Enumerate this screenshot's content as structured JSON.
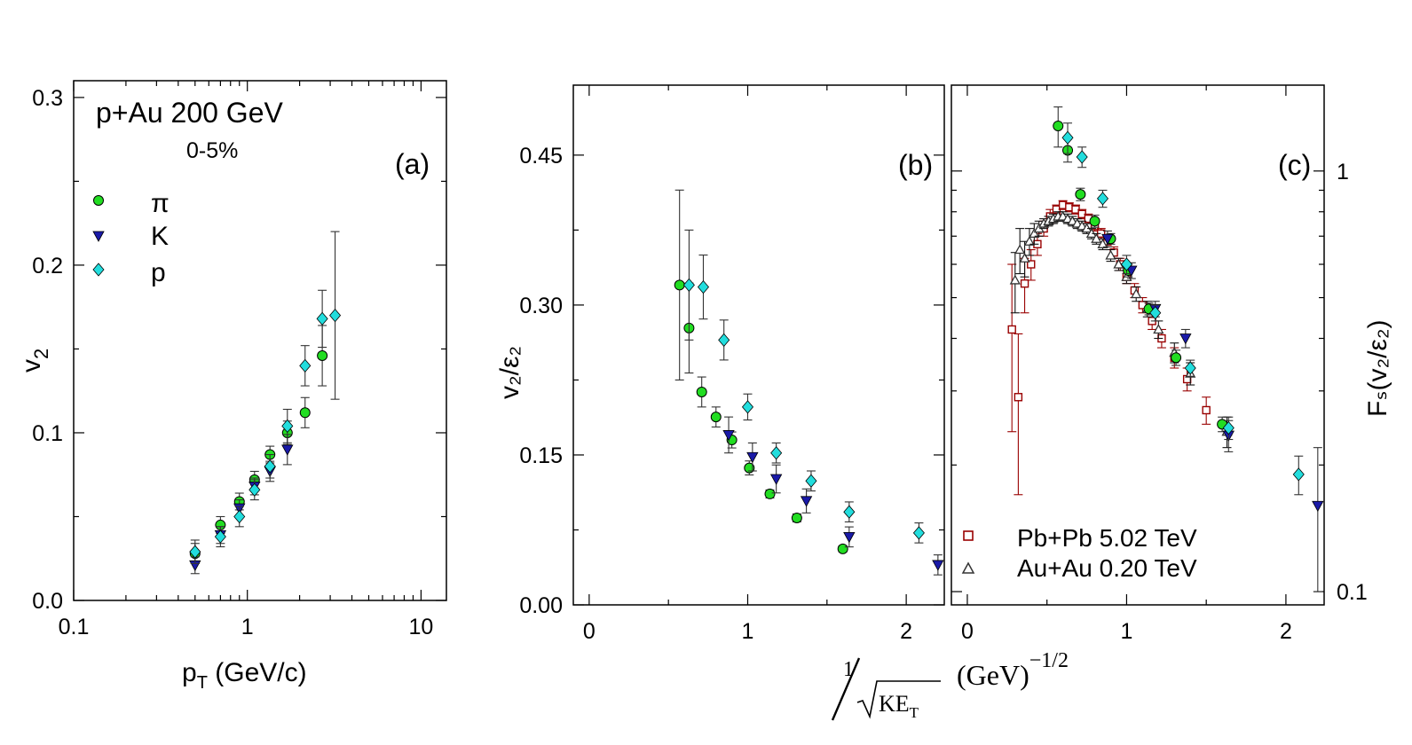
{
  "colors": {
    "pi": "#22dd22",
    "K": "#1a1aa8",
    "p": "#22dddd",
    "PbPb": "#990000",
    "AuAu": "#333333"
  },
  "labels": {
    "a_system": "p+Au  200 GeV",
    "a_centrality": "0-5%",
    "a_panel": "(a)",
    "b_panel": "(b)",
    "c_panel": "(c)",
    "legend_pi": "π",
    "legend_K": "K",
    "legend_p": "p",
    "a_xlabel_main": "p",
    "a_xlabel_sub": "T",
    "a_xlabel_rest": " (GeV/c)",
    "a_ylabel_main": "v",
    "a_ylabel_sub": "2",
    "b_ylabel": "v₂/ε₂",
    "c_ylabel": "Fₛ(v₂/ε₂)",
    "x_shared_num": "1",
    "x_shared_den": "KE",
    "x_shared_den_sub": "T",
    "x_shared_unit": "(GeV)",
    "x_shared_exp": "−1/2",
    "legend_pbpb": "Pb+Pb  5.02 TeV",
    "legend_auau": "Au+Au  0.20 TeV"
  },
  "chart_data": [
    {
      "id": "a",
      "type": "scatter",
      "xscale": "log",
      "xlim": [
        0.1,
        14
      ],
      "ylim": [
        0,
        0.31
      ],
      "xticks": [
        "0.1",
        "1",
        "10"
      ],
      "yticks": [
        "0.0",
        "0.1",
        "0.2",
        "0.3"
      ],
      "xlabel": "pT (GeV/c)",
      "ylabel": "v2",
      "series": [
        {
          "name": "π",
          "marker": "circle",
          "color": "#22dd22",
          "x": [
            0.5,
            0.7,
            0.9,
            1.1,
            1.35,
            1.7,
            2.15,
            2.7
          ],
          "y": [
            0.028,
            0.045,
            0.059,
            0.072,
            0.087,
            0.1,
            0.112,
            0.146
          ],
          "err": [
            0.006,
            0.005,
            0.005,
            0.005,
            0.005,
            0.007,
            0.009,
            0.018
          ]
        },
        {
          "name": "K",
          "marker": "triangle-down",
          "color": "#1a1aa8",
          "x": [
            0.5,
            0.7,
            0.9,
            1.1,
            1.35,
            1.7
          ],
          "y": [
            0.021,
            0.039,
            0.055,
            0.068,
            0.077,
            0.09
          ],
          "err": [
            0.005,
            0.005,
            0.005,
            0.005,
            0.006,
            0.009
          ]
        },
        {
          "name": "p",
          "marker": "diamond",
          "color": "#22dddd",
          "x": [
            0.5,
            0.7,
            0.9,
            1.1,
            1.35,
            1.7,
            2.15,
            2.7,
            3.2
          ],
          "y": [
            0.029,
            0.038,
            0.05,
            0.066,
            0.08,
            0.104,
            0.14,
            0.168,
            0.17
          ],
          "err": [
            0.007,
            0.006,
            0.006,
            0.006,
            0.007,
            0.01,
            0.012,
            0.017,
            0.05
          ]
        }
      ]
    },
    {
      "id": "b",
      "type": "scatter",
      "xlim": [
        -0.1,
        2.24
      ],
      "ylim": [
        0,
        0.52
      ],
      "xticks": [
        "0",
        "1",
        "2"
      ],
      "yticks": [
        "0.00",
        "0.15",
        "0.30",
        "0.45"
      ],
      "xlabel": "1/√KET (GeV)^-1/2",
      "ylabel": "v2/ε2",
      "series": [
        {
          "name": "π",
          "marker": "circle",
          "color": "#22dd22",
          "x": [
            0.57,
            0.63,
            0.71,
            0.8,
            0.9,
            1.01,
            1.14,
            1.31,
            1.6
          ],
          "y": [
            0.32,
            0.277,
            0.213,
            0.188,
            0.165,
            0.137,
            0.111,
            0.087,
            0.056
          ],
          "err": [
            0.095,
            0.045,
            0.015,
            0.01,
            0.008,
            0.007,
            0.004,
            0.004,
            0.003
          ]
        },
        {
          "name": "K",
          "marker": "triangle-down",
          "color": "#1a1aa8",
          "x": [
            0.88,
            1.03,
            1.18,
            1.37,
            1.64,
            2.2
          ],
          "y": [
            0.17,
            0.148,
            0.126,
            0.104,
            0.068,
            0.04
          ],
          "err": [
            0.018,
            0.014,
            0.014,
            0.012,
            0.01,
            0.01
          ]
        },
        {
          "name": "p",
          "marker": "diamond",
          "color": "#22dddd",
          "x": [
            0.63,
            0.72,
            0.85,
            1.0,
            1.18,
            1.4,
            1.64,
            2.08
          ],
          "y": [
            0.32,
            0.318,
            0.265,
            0.198,
            0.152,
            0.124,
            0.093,
            0.072
          ],
          "err": [
            0.055,
            0.032,
            0.02,
            0.013,
            0.01,
            0.01,
            0.01,
            0.01
          ]
        }
      ]
    },
    {
      "id": "c",
      "type": "scatter",
      "yscale": "log",
      "xlim": [
        -0.1,
        2.24
      ],
      "ylim": [
        0.093,
        1.6
      ],
      "xticks": [
        "0",
        "1",
        "2"
      ],
      "yticks": [
        "0.1",
        "1"
      ],
      "xlabel": "1/√KET (GeV)^-1/2",
      "ylabel": "FS(v2/ε2)",
      "series": [
        {
          "name": "π",
          "marker": "circle",
          "color": "#22dd22",
          "x": [
            0.57,
            0.63,
            0.71,
            0.8,
            0.9,
            1.01,
            1.14,
            1.31,
            1.6
          ],
          "y": [
            1.28,
            1.12,
            0.88,
            0.76,
            0.69,
            0.58,
            0.47,
            0.36,
            0.25
          ],
          "err": [
            0.14,
            0.07,
            0.03,
            0.025,
            0.02,
            0.02,
            0.015,
            0.015,
            0.01
          ]
        },
        {
          "name": "K",
          "marker": "triangle-down",
          "color": "#1a1aa8",
          "x": [
            0.88,
            1.03,
            1.18,
            1.37,
            1.64,
            2.2
          ],
          "y": [
            0.69,
            0.58,
            0.47,
            0.4,
            0.235,
            0.16
          ],
          "err": [
            0.03,
            0.025,
            0.02,
            0.02,
            0.02,
            0.06
          ]
        },
        {
          "name": "p",
          "marker": "diamond",
          "color": "#22dddd",
          "x": [
            0.63,
            0.72,
            0.85,
            1.0,
            1.18,
            1.4,
            1.64,
            2.08
          ],
          "y": [
            1.2,
            1.08,
            0.86,
            0.6,
            0.46,
            0.34,
            0.245,
            0.19
          ],
          "err": [
            0.1,
            0.06,
            0.04,
            0.03,
            0.02,
            0.015,
            0.015,
            0.02
          ]
        },
        {
          "name": "Pb+Pb  5.02 TeV",
          "marker": "square-open",
          "color": "#990000",
          "x": [
            0.28,
            0.32,
            0.36,
            0.4,
            0.44,
            0.48,
            0.52,
            0.56,
            0.6,
            0.64,
            0.68,
            0.72,
            0.76,
            0.8,
            0.84,
            0.88,
            0.92,
            0.96,
            1.0,
            1.05,
            1.1,
            1.16,
            1.22,
            1.3,
            1.38,
            1.5
          ],
          "y": [
            0.42,
            0.29,
            0.54,
            0.6,
            0.67,
            0.73,
            0.78,
            0.81,
            0.83,
            0.82,
            0.81,
            0.79,
            0.77,
            0.74,
            0.71,
            0.68,
            0.64,
            0.6,
            0.56,
            0.52,
            0.48,
            0.44,
            0.4,
            0.36,
            0.32,
            0.27
          ],
          "err": [
            0.18,
            0.12,
            0.08,
            0.05,
            0.04,
            0.03,
            0.03,
            0.02,
            0.02,
            0.02,
            0.02,
            0.02,
            0.02,
            0.02,
            0.02,
            0.02,
            0.02,
            0.02,
            0.02,
            0.02,
            0.02,
            0.02,
            0.02,
            0.02,
            0.02,
            0.02
          ]
        },
        {
          "name": "Au+Au  0.20 TeV",
          "marker": "triangle-open",
          "color": "#333333",
          "x": [
            0.3,
            0.33,
            0.36,
            0.39,
            0.42,
            0.45,
            0.48,
            0.51,
            0.54,
            0.57,
            0.6,
            0.63,
            0.66,
            0.69,
            0.72,
            0.75,
            0.78,
            0.81,
            0.85,
            0.9,
            0.95,
            1.0,
            1.06,
            1.13,
            1.2,
            1.3,
            1.4,
            1.63
          ],
          "y": [
            0.55,
            0.65,
            0.62,
            0.68,
            0.71,
            0.73,
            0.75,
            0.76,
            0.77,
            0.78,
            0.78,
            0.77,
            0.76,
            0.75,
            0.74,
            0.73,
            0.71,
            0.69,
            0.67,
            0.63,
            0.6,
            0.56,
            0.51,
            0.47,
            0.42,
            0.37,
            0.33,
            0.24
          ],
          "err": [
            0.09,
            0.08,
            0.06,
            0.05,
            0.04,
            0.03,
            0.02,
            0.02,
            0.02,
            0.02,
            0.02,
            0.02,
            0.02,
            0.02,
            0.02,
            0.02,
            0.02,
            0.02,
            0.02,
            0.02,
            0.02,
            0.02,
            0.02,
            0.02,
            0.02,
            0.02,
            0.02,
            0.02
          ]
        }
      ]
    }
  ]
}
